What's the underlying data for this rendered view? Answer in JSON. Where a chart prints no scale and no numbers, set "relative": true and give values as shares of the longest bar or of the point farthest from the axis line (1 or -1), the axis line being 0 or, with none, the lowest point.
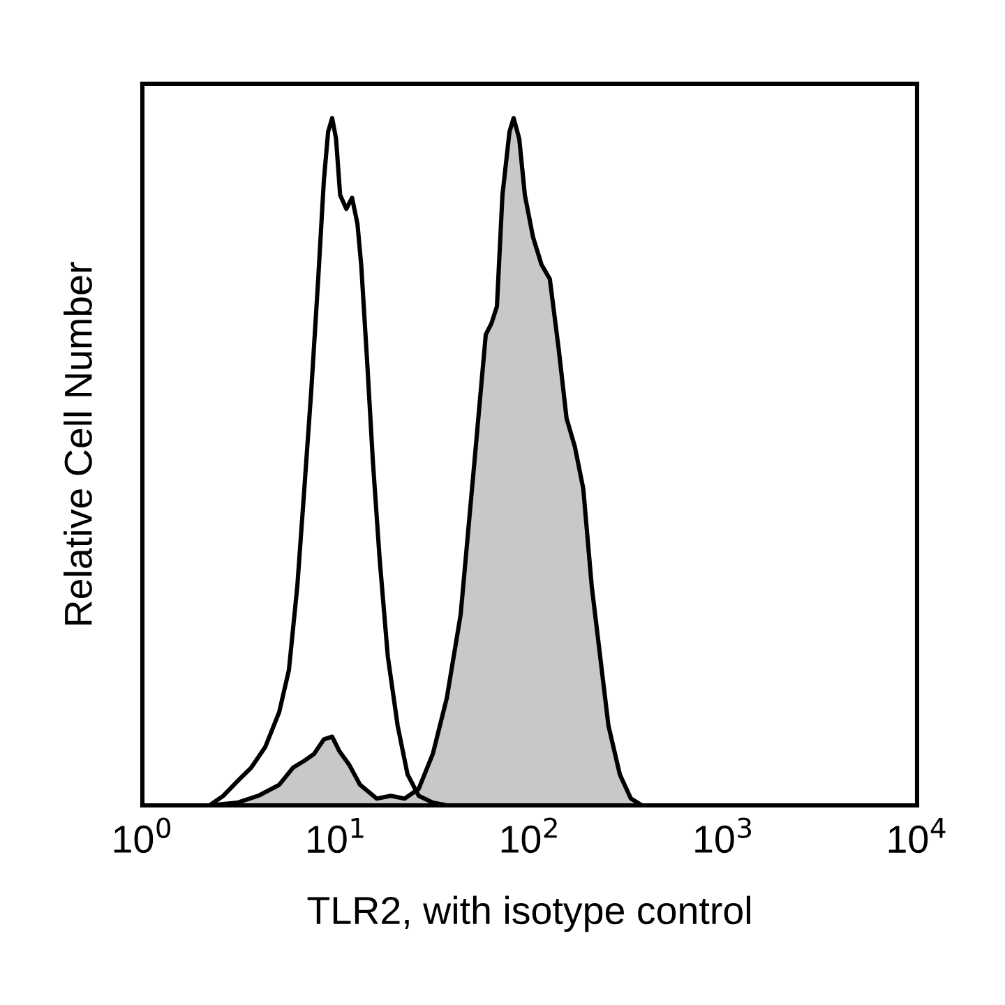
{
  "chart_data": {
    "type": "area",
    "relative": true,
    "log": "x",
    "xlabel": "TLR2, with isotype control",
    "ylabel": "Relative Cell Number",
    "xlim": [
      1,
      10000
    ],
    "xticks": [
      {
        "value": 1,
        "label": "10$^{0}$"
      },
      {
        "value": 10,
        "label": "10$^{1}$"
      },
      {
        "value": 100,
        "label": "10$^{2}$"
      },
      {
        "value": 1000,
        "label": "10$^{3}$"
      },
      {
        "value": 10000,
        "label": "10$^{4}$"
      }
    ],
    "grid": false,
    "legend": false,
    "series": [
      {
        "color": "#c8c8c8",
        "x": [
          2.22,
          3.09,
          3.97,
          5.09,
          6.0,
          6.86,
          7.7,
          8.65,
          9.55,
          10.4,
          11.7,
          13.3,
          16.2,
          19.2,
          22.6,
          26.7,
          31.6,
          37.3,
          44.0,
          51.9,
          59.3,
          63.4,
          67.7,
          72.3,
          78.6,
          82.6,
          88.3,
          94.4,
          104,
          115,
          127,
          141,
          155,
          171,
          189,
          209,
          231,
          255,
          292,
          333,
          380
        ],
        "values": [
          0,
          0.004,
          0.014,
          0.03,
          0.055,
          0.065,
          0.075,
          0.096,
          0.1,
          0.079,
          0.059,
          0.03,
          0.01,
          0.014,
          0.01,
          0.024,
          0.075,
          0.156,
          0.278,
          0.502,
          0.685,
          0.701,
          0.726,
          0.888,
          0.98,
          1.0,
          0.97,
          0.888,
          0.827,
          0.787,
          0.766,
          0.665,
          0.563,
          0.522,
          0.461,
          0.319,
          0.217,
          0.116,
          0.045,
          0.01,
          0
        ]
      },
      {
        "type": "line",
        "color": "#000000",
        "x": [
          2.22,
          2.62,
          3.09,
          3.65,
          4.31,
          5.09,
          5.71,
          6.31,
          6.86,
          7.45,
          8.09,
          8.65,
          9.1,
          9.55,
          10.0,
          10.5,
          11.3,
          12.1,
          12.9,
          13.5,
          14.5,
          15.5,
          16.8,
          18.5,
          20.8,
          23.4,
          26.7,
          31.6,
          37.3
        ],
        "values": [
          0,
          0.014,
          0.035,
          0.055,
          0.085,
          0.136,
          0.197,
          0.319,
          0.461,
          0.604,
          0.766,
          0.909,
          0.98,
          1.0,
          0.97,
          0.888,
          0.868,
          0.884,
          0.846,
          0.785,
          0.642,
          0.5,
          0.358,
          0.217,
          0.116,
          0.045,
          0.014,
          0.004,
          0
        ]
      }
    ]
  }
}
